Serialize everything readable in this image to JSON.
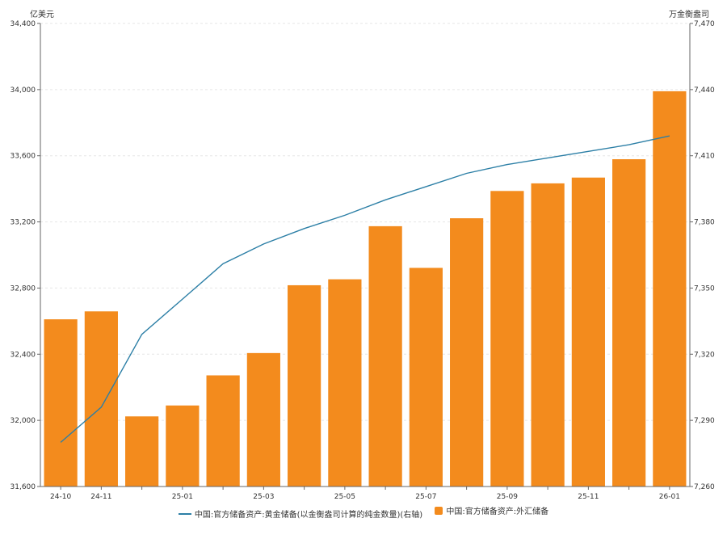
{
  "chart_data": {
    "type": "bar",
    "categories": [
      "24-10",
      "24-11",
      "24-12",
      "25-01",
      "25-02",
      "25-03",
      "25-04",
      "25-05",
      "25-06",
      "25-07",
      "25-08",
      "25-09",
      "25-10",
      "25-11",
      "25-12",
      "26-01"
    ],
    "x_tick_labels": [
      "24-10",
      "24-11",
      "",
      "25-01",
      "",
      "25-03",
      "",
      "25-05",
      "",
      "25-07",
      "",
      "25-09",
      "",
      "25-11",
      "",
      "26-01"
    ],
    "left_axis": {
      "unit": "亿美元",
      "ylim": [
        31600,
        34400
      ],
      "ticks": [
        31600,
        32000,
        32400,
        32800,
        33200,
        33600,
        34000,
        34400
      ]
    },
    "right_axis": {
      "unit": "万金衡盎司",
      "ylim": [
        7260,
        7470
      ],
      "ticks": [
        7260,
        7290,
        7320,
        7350,
        7380,
        7410,
        7440,
        7470
      ]
    },
    "series": [
      {
        "name": "中国:官方储备资产:外汇储备",
        "kind": "bar",
        "axis": "left",
        "color": "#f38b1d",
        "values": [
          32611,
          32659,
          32024,
          32090,
          32272,
          32407,
          32817,
          32853,
          33174,
          32922,
          33222,
          33387,
          33433,
          33468,
          33579,
          33990
        ]
      },
      {
        "name": "中国:官方储备资产:黄金储备(以金衡盎司计算的纯金数量)(右轴)",
        "kind": "line",
        "axis": "right",
        "color": "#2c7fa6",
        "values": [
          7280,
          7296,
          7329,
          7345,
          7361,
          7370,
          7377,
          7383,
          7390,
          7396,
          7402,
          7406,
          7409,
          7412,
          7415,
          7419
        ]
      }
    ],
    "grid": true,
    "legend_position": "bottom"
  },
  "legend": {
    "line_label": "中国:官方储备资产:黄金储备(以金衡盎司计算的纯金数量)(右轴)",
    "bar_label": "中国:官方储备资产:外汇储备"
  }
}
